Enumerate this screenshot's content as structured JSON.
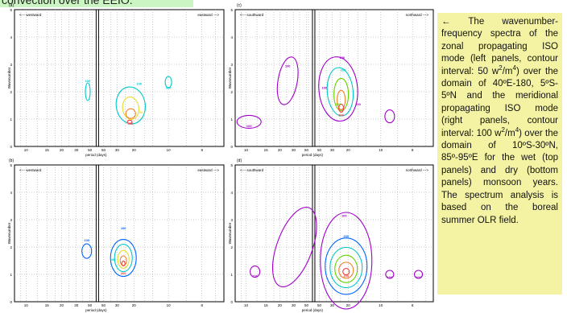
{
  "banner_text": "convection over the EEIO.",
  "caption": {
    "arrow": "←",
    "parts": [
      {
        "t": " The wavenumber-frequency spectra of the zonal propagating ISO mode (left panels, contour interval: 50 w"
      },
      {
        "t": "2",
        "sup": true
      },
      {
        "t": "/m"
      },
      {
        "t": "4",
        "sup": true
      },
      {
        "t": ") over the domain of 40ºE-180, 5ºS-5ºN and the meridional propagating ISO mode (right panels, contour interval: 100 w"
      },
      {
        "t": "2",
        "sup": true
      },
      {
        "t": "/m"
      },
      {
        "t": "4",
        "sup": true
      },
      {
        "t": ") over the domain of 10ºS-30ºN, 85º-95ºE for the wet (top panels) and dry (bottom panels) monsoon years. The spectrum analysis is based on the boreal summer OLR field."
      }
    ]
  },
  "figure": {
    "panels": [
      {
        "label": "(a)",
        "left_text": "<--- westward",
        "right_text": "eastward --->",
        "ylabel": "Wavenumber",
        "xlabel": "period (days)"
      },
      {
        "label": "(c)",
        "left_text": "<--- southward",
        "right_text": "northward --->",
        "ylabel": "Wavenumber",
        "xlabel": "period (days)"
      },
      {
        "label": "(b)",
        "left_text": "<--- westward",
        "right_text": "eastward --->",
        "ylabel": "Wavenumber",
        "xlabel": "period (days)"
      },
      {
        "label": "(d)",
        "left_text": "<--- southward",
        "right_text": "northward --->",
        "ylabel": "Wavenumber",
        "xlabel": "period (days)"
      }
    ],
    "x_tick_labels": [
      "10",
      "15",
      "20",
      "30",
      "50",
      "50",
      "30",
      "20",
      "10",
      "8"
    ],
    "y_tick_labels": [
      "0",
      "1",
      "2",
      "3",
      "4",
      "5"
    ],
    "contour_colors": [
      "#a000c8",
      "#0064ff",
      "#00c8c8",
      "#64d200",
      "#e6dc32",
      "#f08228",
      "#fa3c3c",
      "#dc00b4"
    ],
    "contour_labels": {
      "a": [
        "100",
        "100",
        "100",
        "150",
        "200"
      ],
      "c": [
        "100",
        "100",
        "100",
        "100",
        "100",
        "200",
        "300",
        "500"
      ],
      "b": [
        "100",
        "100",
        "150",
        "200"
      ],
      "d": [
        "100",
        "100",
        "100",
        "100",
        "200",
        "300"
      ]
    }
  }
}
